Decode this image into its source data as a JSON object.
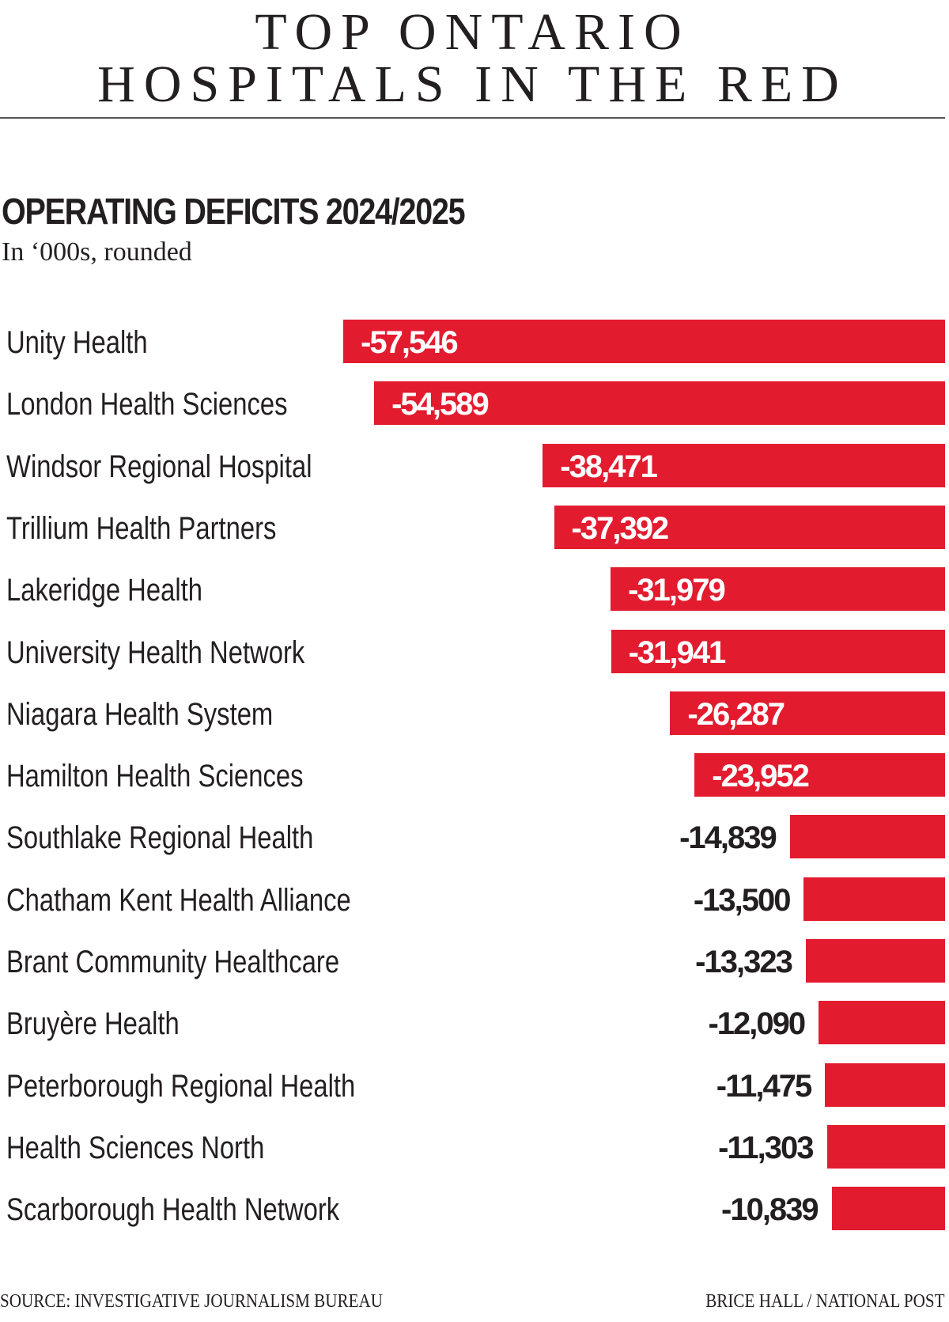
{
  "title_lines": [
    "TOP ONTARIO",
    "HOSPITALS IN THE RED"
  ],
  "chart_data": {
    "type": "bar",
    "orientation": "horizontal",
    "title": "OPERATING DEFICITS 2024/2025",
    "subtitle": "In ‘000s, rounded",
    "categories": [
      "Unity Health",
      "London Health Sciences",
      "Windsor Regional Hospital",
      "Trillium Health Partners",
      "Lakeridge Health",
      "University Health Network",
      "Niagara Health System",
      "Hamilton Health Sciences",
      "Southlake Regional Health",
      "Chatham Kent Health Alliance",
      "Brant Community Healthcare",
      "Bruyère Health",
      "Peterborough Regional Health",
      "Health Sciences North",
      "Scarborough Health Network"
    ],
    "values": [
      -57546,
      -54589,
      -38471,
      -37392,
      -31979,
      -31941,
      -26287,
      -23952,
      -14839,
      -13500,
      -13323,
      -12090,
      -11475,
      -11303,
      -10839
    ],
    "value_labels": [
      "-57,546",
      "-54,589",
      "-38,471",
      "-37,392",
      "-31,979",
      "-31,941",
      "-26,287",
      "-23,952",
      "-14,839",
      "-13,500",
      "-13,323",
      "-12,090",
      "-11,475",
      "-11,303",
      "-10,839"
    ],
    "bar_color": "#e31b2f",
    "grid": false,
    "legend": "none"
  },
  "footer": {
    "source": "SOURCE: INVESTIGATIVE JOURNALISM BUREAU",
    "credit": "BRICE HALL  / NATIONAL POST"
  }
}
